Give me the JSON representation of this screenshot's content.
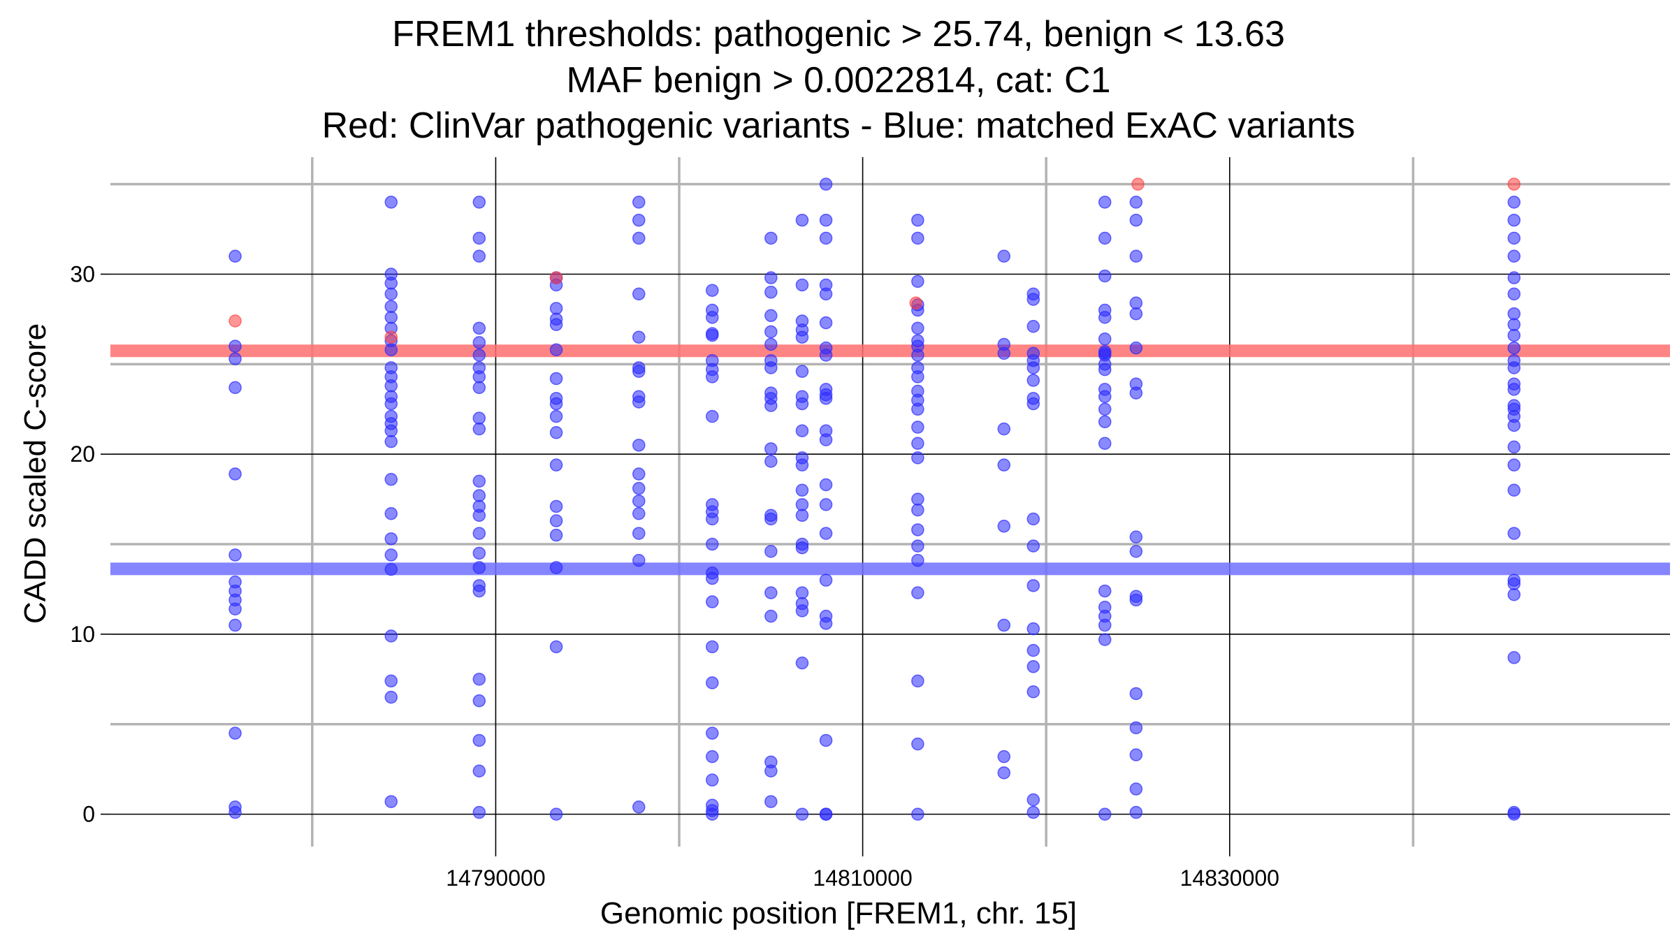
{
  "chart_data": {
    "type": "scatter",
    "title_lines": [
      "FREM1 thresholds: pathogenic > 25.74, benign < 13.63",
      "MAF benign > 0.0022814, cat: C1",
      "Red: ClinVar pathogenic variants - Blue: matched ExAC variants"
    ],
    "xlabel": "Genomic position [FREM1, chr. 15]",
    "ylabel": "CADD scaled C-score",
    "xlim": [
      14769000,
      14854000
    ],
    "ylim": [
      -1.8,
      36.5
    ],
    "x_ticks": [
      14790000,
      14810000,
      14830000
    ],
    "x_tick_labels": [
      "14790000",
      "14810000",
      "14830000"
    ],
    "x_minor_grid": [
      14780000,
      14800000,
      14820000,
      14840000
    ],
    "y_ticks": [
      0,
      10,
      20,
      30
    ],
    "y_tick_labels": [
      "0",
      "10",
      "20",
      "30"
    ],
    "y_minor_grid": [
      5,
      15,
      25,
      35
    ],
    "thresholds": {
      "pathogenic": 25.74,
      "benign": 13.63,
      "pathogenic_color": "#ff6e6e",
      "benign_color": "#7070ff"
    },
    "colors": {
      "pathogenic_point": "#ff4040",
      "benign_point": "#2a2aff"
    },
    "series": [
      {
        "name": "ClinVar pathogenic variants",
        "color": "#ff4040",
        "x": [
          14775800,
          14784300,
          14793300,
          14812900,
          14825000,
          14845500
        ],
        "y": [
          27.4,
          26.5,
          29.8,
          28.4,
          35.0,
          35.0
        ]
      },
      {
        "name": "matched ExAC variants",
        "color": "#2a2aff",
        "x": [
          14775800,
          14775800,
          14775800,
          14775800,
          14775800,
          14775800,
          14775800,
          14775800,
          14775800,
          14775800,
          14775800,
          14775800,
          14775800,
          14775800,
          14784300,
          14784300,
          14784300,
          14784300,
          14784300,
          14784300,
          14784300,
          14784300,
          14784300,
          14784300,
          14784300,
          14784300,
          14784300,
          14784300,
          14784300,
          14784300,
          14784300,
          14784300,
          14784300,
          14784300,
          14784300,
          14784300,
          14784300,
          14784300,
          14784300,
          14784300,
          14784300,
          14789100,
          14789100,
          14789100,
          14789100,
          14789100,
          14789100,
          14789100,
          14789100,
          14789100,
          14789100,
          14789100,
          14789100,
          14789100,
          14789100,
          14789100,
          14789100,
          14789100,
          14789100,
          14789100,
          14789100,
          14789100,
          14789100,
          14789100,
          14789100,
          14789100,
          14793300,
          14793300,
          14793300,
          14793300,
          14793300,
          14793300,
          14793300,
          14793300,
          14793300,
          14793300,
          14793300,
          14793300,
          14793300,
          14793300,
          14793300,
          14793300,
          14793300,
          14793300,
          14797800,
          14797800,
          14797800,
          14797800,
          14797800,
          14797800,
          14797800,
          14797800,
          14797800,
          14797800,
          14797800,
          14797800,
          14797800,
          14797800,
          14797800,
          14797800,
          14797800,
          14801800,
          14801800,
          14801800,
          14801800,
          14801800,
          14801800,
          14801800,
          14801800,
          14801800,
          14801800,
          14801800,
          14801800,
          14801800,
          14801800,
          14801800,
          14801800,
          14801800,
          14801800,
          14801800,
          14801800,
          14801800,
          14801800,
          14801800,
          14801800,
          14805000,
          14805000,
          14805000,
          14805000,
          14805000,
          14805000,
          14805000,
          14805000,
          14805000,
          14805000,
          14805000,
          14805000,
          14805000,
          14805000,
          14805000,
          14805000,
          14805000,
          14805000,
          14805000,
          14805000,
          14805000,
          14806700,
          14806700,
          14806700,
          14806700,
          14806700,
          14806700,
          14806700,
          14806700,
          14806700,
          14806700,
          14806700,
          14806700,
          14806700,
          14806700,
          14806700,
          14806700,
          14806700,
          14806700,
          14806700,
          14806700,
          14806700,
          14808000,
          14808000,
          14808000,
          14808000,
          14808000,
          14808000,
          14808000,
          14808000,
          14808000,
          14808000,
          14808000,
          14808000,
          14808000,
          14808000,
          14808000,
          14808000,
          14808000,
          14808000,
          14808000,
          14808000,
          14808000,
          14808000,
          14813000,
          14813000,
          14813000,
          14813000,
          14813000,
          14813000,
          14813000,
          14813000,
          14813000,
          14813000,
          14813000,
          14813000,
          14813000,
          14813000,
          14813000,
          14813000,
          14813000,
          14813000,
          14813000,
          14813000,
          14813000,
          14813000,
          14813000,
          14813000,
          14813000,
          14813000,
          14817700,
          14817700,
          14817700,
          14817700,
          14817700,
          14817700,
          14817700,
          14817700,
          14817700,
          14819300,
          14819300,
          14819300,
          14819300,
          14819300,
          14819300,
          14819300,
          14819300,
          14819300,
          14819300,
          14819300,
          14819300,
          14819300,
          14819300,
          14819300,
          14819300,
          14819300,
          14819300,
          14823200,
          14823200,
          14823200,
          14823200,
          14823200,
          14823200,
          14823200,
          14823200,
          14823200,
          14823200,
          14823200,
          14823200,
          14823200,
          14823200,
          14823200,
          14823200,
          14823200,
          14823200,
          14823200,
          14823200,
          14823200,
          14823200,
          14824900,
          14824900,
          14824900,
          14824900,
          14824900,
          14824900,
          14824900,
          14824900,
          14824900,
          14824900,
          14824900,
          14824900,
          14824900,
          14824900,
          14824900,
          14824900,
          14824900,
          14845500,
          14845500,
          14845500,
          14845500,
          14845500,
          14845500,
          14845500,
          14845500,
          14845500,
          14845500,
          14845500,
          14845500,
          14845500,
          14845500,
          14845500,
          14845500,
          14845500,
          14845500,
          14845500,
          14845500,
          14845500,
          14845500,
          14845500,
          14845500,
          14845500,
          14845500,
          14845500,
          14845500
        ],
        "y": [
          31.0,
          26.0,
          25.3,
          23.7,
          18.9,
          14.4,
          12.9,
          12.4,
          11.9,
          11.4,
          10.5,
          4.5,
          0.4,
          0.1,
          34.0,
          30.0,
          29.5,
          28.9,
          28.2,
          27.6,
          27.0,
          26.3,
          25.8,
          24.8,
          24.3,
          23.8,
          23.2,
          22.8,
          22.1,
          21.7,
          21.3,
          20.7,
          18.6,
          16.7,
          15.3,
          14.4,
          13.6,
          9.9,
          7.4,
          6.5,
          0.7,
          34.0,
          32.0,
          31.0,
          27.0,
          26.2,
          25.5,
          24.8,
          24.3,
          23.7,
          22.0,
          21.4,
          18.5,
          17.7,
          17.1,
          16.6,
          15.6,
          14.5,
          13.7,
          12.7,
          12.4,
          7.5,
          6.3,
          4.1,
          2.4,
          0.1,
          29.8,
          29.4,
          28.1,
          27.5,
          27.2,
          25.8,
          24.2,
          23.1,
          22.8,
          22.1,
          21.2,
          19.4,
          17.1,
          16.3,
          15.5,
          13.7,
          9.3,
          0.0,
          34.0,
          33.0,
          32.0,
          28.9,
          26.5,
          24.8,
          24.6,
          23.2,
          22.9,
          20.5,
          18.9,
          18.1,
          17.4,
          16.7,
          15.6,
          14.1,
          0.4,
          29.1,
          28.0,
          27.6,
          26.7,
          26.6,
          25.2,
          24.7,
          24.3,
          22.1,
          17.2,
          16.8,
          16.4,
          15.0,
          13.4,
          13.1,
          11.8,
          9.3,
          7.3,
          4.5,
          3.2,
          1.9,
          0.5,
          0.2,
          0.0,
          32.0,
          29.8,
          29.0,
          27.7,
          26.8,
          26.1,
          25.2,
          24.8,
          23.4,
          23.1,
          22.7,
          20.3,
          19.6,
          16.6,
          16.4,
          14.6,
          12.3,
          11.0,
          2.9,
          2.4,
          0.7,
          33.0,
          29.4,
          27.4,
          26.9,
          26.5,
          24.6,
          23.2,
          22.8,
          21.3,
          19.8,
          19.4,
          18.0,
          17.2,
          16.6,
          15.0,
          14.8,
          12.3,
          11.7,
          11.3,
          8.4,
          0.0,
          35.0,
          33.0,
          32.0,
          29.4,
          28.9,
          27.3,
          25.9,
          25.5,
          23.6,
          23.3,
          23.1,
          21.3,
          20.8,
          18.3,
          17.2,
          15.6,
          13.0,
          11.0,
          10.6,
          4.1,
          0.0,
          0.0,
          33.0,
          32.0,
          29.6,
          28.3,
          28.0,
          27.0,
          26.3,
          26.0,
          25.5,
          24.8,
          24.3,
          23.5,
          23.0,
          22.5,
          21.5,
          20.6,
          19.8,
          17.5,
          16.9,
          15.8,
          14.9,
          14.1,
          12.3,
          7.4,
          3.9,
          0.0,
          31.0,
          26.1,
          25.6,
          21.4,
          19.4,
          16.0,
          10.5,
          3.2,
          2.3,
          28.9,
          28.6,
          27.1,
          25.6,
          25.2,
          24.8,
          24.1,
          23.1,
          22.8,
          16.4,
          14.9,
          12.7,
          10.3,
          9.1,
          8.2,
          6.8,
          0.8,
          0.1,
          34.0,
          32.0,
          29.9,
          28.0,
          27.6,
          25.7,
          25.5,
          23.6,
          23.2,
          22.5,
          21.8,
          20.6,
          12.4,
          11.5,
          11.0,
          10.5,
          9.7,
          0.0,
          26.4,
          24.7,
          25.6,
          25.0,
          34.0,
          33.0,
          31.0,
          28.4,
          27.8,
          25.9,
          23.9,
          23.4,
          15.4,
          14.6,
          12.1,
          11.9,
          6.7,
          4.8,
          3.3,
          1.4,
          0.1,
          34.0,
          33.0,
          32.0,
          31.0,
          29.8,
          28.9,
          27.8,
          27.2,
          26.6,
          25.9,
          25.2,
          24.8,
          23.9,
          23.6,
          22.7,
          22.5,
          22.1,
          21.6,
          20.4,
          19.4,
          18.0,
          15.6,
          13.0,
          12.8,
          12.2,
          8.7,
          0.1,
          0.0
        ]
      }
    ]
  }
}
